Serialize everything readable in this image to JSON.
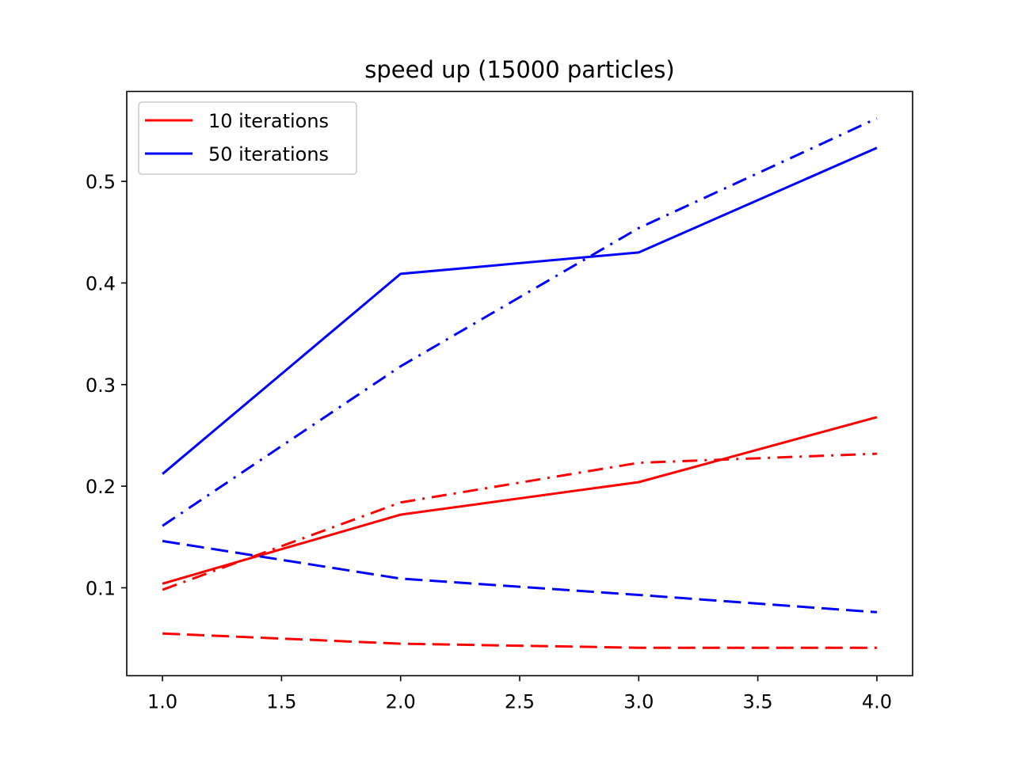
{
  "chart_data": {
    "type": "line",
    "title": "speed up (15000 particles)",
    "xlabel": "",
    "ylabel": "",
    "xlim": [
      0.85,
      4.15
    ],
    "ylim": [
      0.0135,
      0.5885
    ],
    "x_ticks": [
      1.0,
      1.5,
      2.0,
      2.5,
      3.0,
      3.5,
      4.0
    ],
    "x_tick_labels": [
      "1.0",
      "1.5",
      "2.0",
      "2.5",
      "3.0",
      "3.5",
      "4.0"
    ],
    "y_ticks": [
      0.1,
      0.2,
      0.3,
      0.4,
      0.5
    ],
    "y_tick_labels": [
      "0.1",
      "0.2",
      "0.3",
      "0.4",
      "0.5"
    ],
    "grid": false,
    "legend": {
      "position": "top-left",
      "entries": [
        "10 iterations",
        "50 iterations"
      ]
    },
    "x": [
      1,
      2,
      3,
      4
    ],
    "series": [
      {
        "name": "10 iterations",
        "color": "#ff0000",
        "style": "solid",
        "values": [
          0.104,
          0.172,
          0.204,
          0.268
        ]
      },
      {
        "color": "#ff0000",
        "style": "dashdot",
        "values": [
          0.098,
          0.184,
          0.223,
          0.232
        ]
      },
      {
        "color": "#ff0000",
        "style": "dashed",
        "values": [
          0.055,
          0.045,
          0.041,
          0.041
        ]
      },
      {
        "name": "50 iterations",
        "color": "#0000ff",
        "style": "solid",
        "values": [
          0.212,
          0.409,
          0.43,
          0.533
        ]
      },
      {
        "color": "#0000ff",
        "style": "dashdot",
        "values": [
          0.161,
          0.318,
          0.454,
          0.562
        ]
      },
      {
        "color": "#0000ff",
        "style": "dashed",
        "values": [
          0.146,
          0.109,
          0.093,
          0.076
        ]
      }
    ]
  }
}
